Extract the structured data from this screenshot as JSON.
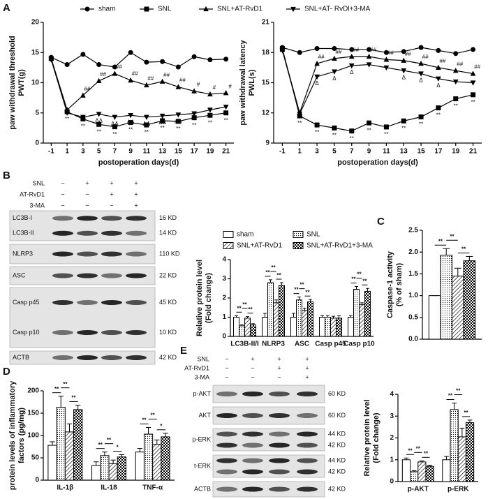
{
  "chart_data": [
    {
      "panel": "A",
      "type": "line",
      "x": [
        -1,
        1,
        3,
        5,
        7,
        9,
        11,
        13,
        15,
        17,
        19,
        21
      ],
      "xlim": [
        -2,
        22
      ],
      "xticks": [
        -1,
        1,
        3,
        5,
        7,
        9,
        11,
        13,
        15,
        17,
        19,
        21
      ],
      "ylim": [
        0,
        20
      ],
      "yticks": [
        0,
        5,
        10,
        15,
        20
      ],
      "x_label": "postoperation days(d)",
      "y_label": [
        "paw withdrawal threshold",
        "PWT(g)"
      ],
      "legend": "top",
      "series": [
        {
          "name": "sham",
          "marker": "circle",
          "color": "#000",
          "values": [
            14.2,
            13.0,
            14.7,
            13.0,
            12.6,
            15.0,
            13.4,
            13.5,
            12.6,
            14.3,
            13.8,
            13.9
          ]
        },
        {
          "name": "SNL",
          "marker": "square",
          "color": "#000",
          "values": [
            14.0,
            5.2,
            4.0,
            3.1,
            2.7,
            3.4,
            3.0,
            3.7,
            3.6,
            4.2,
            4.6,
            5.0
          ],
          "point_labels": [
            null,
            "**",
            "**",
            "**",
            "**",
            "**",
            "**",
            "**",
            "**",
            "**",
            "**",
            "**"
          ]
        },
        {
          "name": "SNL+AT-RvD1",
          "marker": "triangle-up",
          "color": "#000",
          "values": [
            14.0,
            5.5,
            7.9,
            10.3,
            11.5,
            10.4,
            9.6,
            10.2,
            9.3,
            8.6,
            8.1,
            8.3
          ],
          "point_labels": [
            null,
            null,
            "##",
            "##",
            "##",
            "##",
            "##",
            "##",
            "##",
            "#",
            "#",
            "#"
          ]
        },
        {
          "name": "SNL+AT- RvDl+3-MA",
          "marker": "triangle-down",
          "color": "#000",
          "values": [
            13.8,
            5.0,
            4.3,
            4.8,
            4.3,
            4.6,
            4.3,
            4.5,
            4.7,
            4.9,
            5.5,
            6.0
          ],
          "point_labels": [
            null,
            null,
            null,
            "ΔΔ",
            "ΔΔ",
            "ΔΔ",
            "ΔΔ",
            "ΔΔ",
            "ΔΔ",
            null,
            null,
            null
          ]
        }
      ]
    },
    {
      "type": "line",
      "x": [
        -1,
        1,
        3,
        5,
        7,
        9,
        11,
        13,
        15,
        17,
        19,
        21
      ],
      "xlim": [
        -2,
        22
      ],
      "xticks": [
        -1,
        1,
        3,
        5,
        7,
        9,
        11,
        13,
        15,
        17,
        19,
        21
      ],
      "ylim": [
        9,
        21
      ],
      "yticks": [
        9,
        12,
        15,
        18,
        21
      ],
      "x_label": "postoperation days(d)",
      "y_label": [
        "paw withdrawal latency",
        "PWL(s)"
      ],
      "series": [
        {
          "marker": "circle",
          "color": "#000",
          "values": [
            18.5,
            18.0,
            18.4,
            18.4,
            18.3,
            18.3,
            18.0,
            18.1,
            18.5,
            18.2,
            17.9,
            18.3
          ]
        },
        {
          "marker": "square",
          "color": "#000",
          "values": [
            18.4,
            11.7,
            10.8,
            10.5,
            10.2,
            11.0,
            10.6,
            11.2,
            11.6,
            12.5,
            13.4,
            13.8
          ],
          "point_labels": [
            null,
            "**",
            "**",
            "**",
            "**",
            "**",
            "**",
            "**",
            "**",
            "**",
            "**",
            "**"
          ]
        },
        {
          "marker": "triangle-up",
          "color": "#000",
          "values": [
            18.3,
            12.0,
            16.9,
            17.4,
            17.6,
            17.6,
            17.3,
            17.2,
            16.9,
            16.5,
            16.2,
            15.9
          ],
          "point_labels": [
            null,
            null,
            "##",
            "##",
            "##",
            "##",
            "##",
            "##",
            "##",
            "##",
            "##",
            "##"
          ]
        },
        {
          "marker": "triangle-down",
          "color": "#000",
          "values": [
            18.2,
            11.9,
            15.6,
            16.1,
            16.7,
            16.8,
            16.5,
            16.2,
            15.9,
            15.4,
            15.1,
            15.0
          ],
          "point_labels": [
            null,
            null,
            "Δ",
            "Δ",
            "Δ",
            null,
            null,
            "Δ",
            "Δ",
            "Δ",
            null,
            null
          ]
        }
      ]
    },
    {
      "type": "bar",
      "categories": [
        "LC3B-II/I",
        "NLRP3",
        "ASC",
        "Casp p45",
        "Casp p10"
      ],
      "ylim": [
        0,
        4
      ],
      "yticks": [
        0,
        1,
        2,
        3,
        4
      ],
      "y_label": [
        "Relative protein level",
        "(Fold change)"
      ],
      "legend": "top",
      "series": [
        {
          "name": "sham",
          "pattern": "none",
          "values": [
            1,
            1,
            1,
            1,
            1
          ],
          "errors": [
            0.08,
            0.2,
            0.2,
            0.08,
            0.08
          ]
        },
        {
          "name": "SNL",
          "pattern": "dots",
          "values": [
            0.55,
            2.8,
            1.9,
            1.0,
            2.45
          ],
          "errors": [
            0.06,
            0.15,
            0.15,
            0.08,
            0.15
          ]
        },
        {
          "name": "SNL+AT-RvD1",
          "pattern": "hatch",
          "values": [
            0.95,
            1.75,
            1.35,
            0.95,
            1.65
          ],
          "errors": [
            0.08,
            0.15,
            0.12,
            0.1,
            0.1
          ]
        },
        {
          "name": "SNL+AT-RvD1+3-MA",
          "pattern": "checker",
          "values": [
            0.6,
            2.65,
            1.8,
            0.95,
            2.35
          ],
          "errors": [
            0.06,
            0.15,
            0.12,
            0.12,
            0.15
          ]
        }
      ],
      "brackets": [
        [
          "**",
          "**",
          "**"
        ],
        [
          "**",
          "**",
          "**"
        ],
        [
          "**",
          "**",
          "**"
        ],
        [
          null,
          null,
          null
        ],
        [
          "**",
          "**",
          "**"
        ]
      ]
    },
    {
      "panel": "C",
      "type": "bar",
      "categories": [
        null
      ],
      "ylim": [
        0,
        2.5
      ],
      "yticks": [
        {
          "value": 0,
          "label": "0.0"
        },
        0.5,
        {
          "value": 1,
          "label": "1.0"
        },
        1.5,
        {
          "value": 2,
          "label": "2.0"
        },
        2.5
      ],
      "y_label": [
        "Caspase-1 activity",
        "(% of sham)"
      ],
      "series": [
        {
          "pattern": "none",
          "values": [
            1
          ],
          "errors": [
            0
          ]
        },
        {
          "pattern": "dots",
          "values": [
            1.93
          ],
          "errors": [
            0.15
          ]
        },
        {
          "pattern": "hatch",
          "values": [
            1.45
          ],
          "errors": [
            0.18
          ]
        },
        {
          "pattern": "checker",
          "values": [
            1.8
          ],
          "errors": [
            0.1
          ]
        }
      ],
      "brackets": [
        [
          "**",
          "**",
          "**"
        ]
      ]
    },
    {
      "panel": "D",
      "type": "bar",
      "categories": [
        "IL-1β",
        "IL-18",
        "TNF-α"
      ],
      "ylim": [
        0,
        200
      ],
      "yticks": [
        0,
        50,
        100,
        150,
        200
      ],
      "y_label": [
        "protein levels of inflammatory",
        "factors (pg/mg)"
      ],
      "series": [
        {
          "pattern": "none",
          "values": [
            78,
            33,
            63
          ],
          "errors": [
            8,
            8,
            8
          ]
        },
        {
          "pattern": "dots",
          "values": [
            163,
            55,
            103
          ],
          "errors": [
            25,
            8,
            15
          ]
        },
        {
          "pattern": "hatch",
          "values": [
            108,
            37,
            80
          ],
          "errors": [
            18,
            8,
            10
          ]
        },
        {
          "pattern": "checker",
          "values": [
            158,
            52,
            97
          ],
          "errors": [
            10,
            5,
            8
          ]
        }
      ],
      "brackets": [
        [
          "**",
          "**",
          "**"
        ],
        [
          "**",
          "**",
          "*"
        ],
        [
          "**",
          "**",
          "*"
        ]
      ]
    },
    {
      "type": "bar",
      "categories": [
        "p-AKT",
        "p-ERK"
      ],
      "ylim": [
        0,
        4
      ],
      "yticks": [
        0,
        1,
        2,
        3,
        4
      ],
      "y_label": [
        "Relative protein level",
        "(Fold change)"
      ],
      "series": [
        {
          "pattern": "none",
          "values": [
            1,
            1
          ],
          "errors": [
            0.08,
            0.15
          ]
        },
        {
          "pattern": "dots",
          "values": [
            0.45,
            3.3
          ],
          "errors": [
            0.05,
            0.3
          ]
        },
        {
          "pattern": "hatch",
          "values": [
            0.9,
            2.05
          ],
          "errors": [
            0.05,
            0.4
          ]
        },
        {
          "pattern": "checker",
          "values": [
            0.7,
            2.7
          ],
          "errors": [
            0.05,
            0.12
          ]
        }
      ],
      "brackets": [
        [
          "**",
          "**",
          "**"
        ],
        [
          "**",
          "**",
          "**"
        ]
      ]
    }
  ],
  "blots": [
    {
      "panel": "B",
      "treatments": [
        {
          "name": "SNL",
          "signs": [
            "−",
            "+",
            "+",
            "+"
          ]
        },
        {
          "name": "AT-RvD1",
          "signs": [
            "−",
            "−",
            "+",
            "+"
          ]
        },
        {
          "name": "3-MA",
          "signs": [
            "−",
            "−",
            "−",
            "+"
          ]
        }
      ],
      "boxes": [
        {
          "labels": [
            "LC3B-I",
            "LC3B-II"
          ],
          "sizes": [
            "16 KD",
            "14 KD"
          ]
        },
        {
          "labels": [
            "NLRP3"
          ],
          "sizes": [
            "110 KD"
          ]
        },
        {
          "labels": [
            "ASC"
          ],
          "sizes": [
            "22 KD"
          ]
        },
        {
          "labels": [
            "Casp p45",
            "Casp p10"
          ],
          "sizes": [
            "45 KD",
            "10 KD"
          ]
        },
        {
          "labels": [
            "ACTB"
          ],
          "sizes": [
            "42 KD"
          ]
        }
      ]
    },
    {
      "panel": "E",
      "treatments": [
        {
          "name": "SNL",
          "signs": [
            "−",
            "+",
            "+",
            "+"
          ]
        },
        {
          "name": "AT-RvD1",
          "signs": [
            "−",
            "−",
            "+",
            "+"
          ]
        },
        {
          "name": "3-MA",
          "signs": [
            "−",
            "−",
            "−",
            "+"
          ]
        }
      ],
      "boxes": [
        {
          "labels": [
            "p-AKT"
          ],
          "sizes": [
            "60 KD"
          ]
        },
        {
          "labels": [
            "AKT"
          ],
          "sizes": [
            "60 KD"
          ]
        },
        {
          "labels": [
            "p-ERK"
          ],
          "sizes": [
            "44 KD",
            "42 KD"
          ]
        },
        {
          "labels": [
            "t-ERK"
          ],
          "sizes": [
            "44 KD",
            "42 KD"
          ]
        },
        {
          "labels": [
            "ACTB"
          ],
          "sizes": [
            "42 KD"
          ]
        }
      ]
    }
  ]
}
